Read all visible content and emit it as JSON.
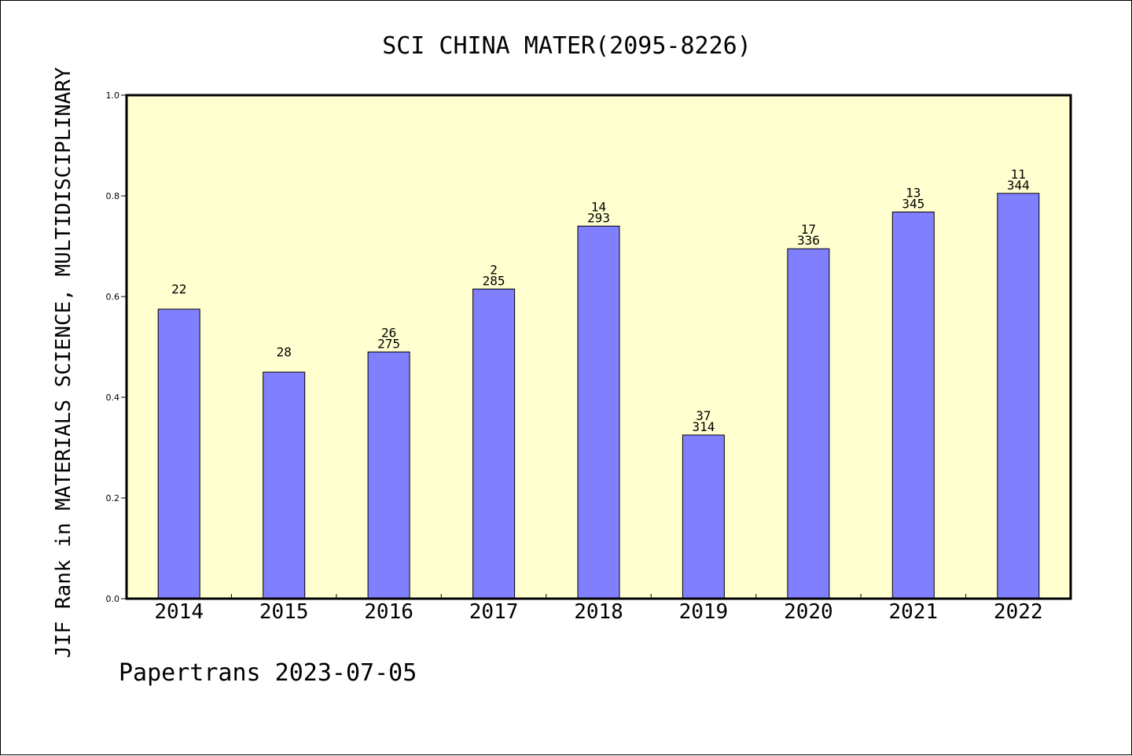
{
  "chart_data": {
    "type": "bar",
    "title": "SCI CHINA MATER(2095-8226)",
    "ylabel": "JIF Rank in MATERIALS SCIENCE, MULTIDISCIPLINARY",
    "xlabel": "",
    "ylim": [
      0.0,
      1.0
    ],
    "yticks": [
      "0.0",
      "0.2",
      "0.4",
      "0.6",
      "0.8",
      "1.0"
    ],
    "grid": false,
    "categories": [
      "2014",
      "2015",
      "2016",
      "2017",
      "2018",
      "2019",
      "2020",
      "2021",
      "2022"
    ],
    "values": [
      0.575,
      0.45,
      0.49,
      0.615,
      0.74,
      0.325,
      0.695,
      0.768,
      0.805
    ],
    "labels_top": [
      "22",
      "28",
      "26",
      "2",
      "14",
      "37",
      "17",
      "13",
      "11"
    ],
    "labels_bottom": [
      "",
      "",
      "275",
      "285",
      "293",
      "314",
      "336",
      "345",
      "344"
    ],
    "bar_color": "#8080ff",
    "plot_background": "#ffffd0"
  },
  "footer": "Papertrans 2023-07-05"
}
